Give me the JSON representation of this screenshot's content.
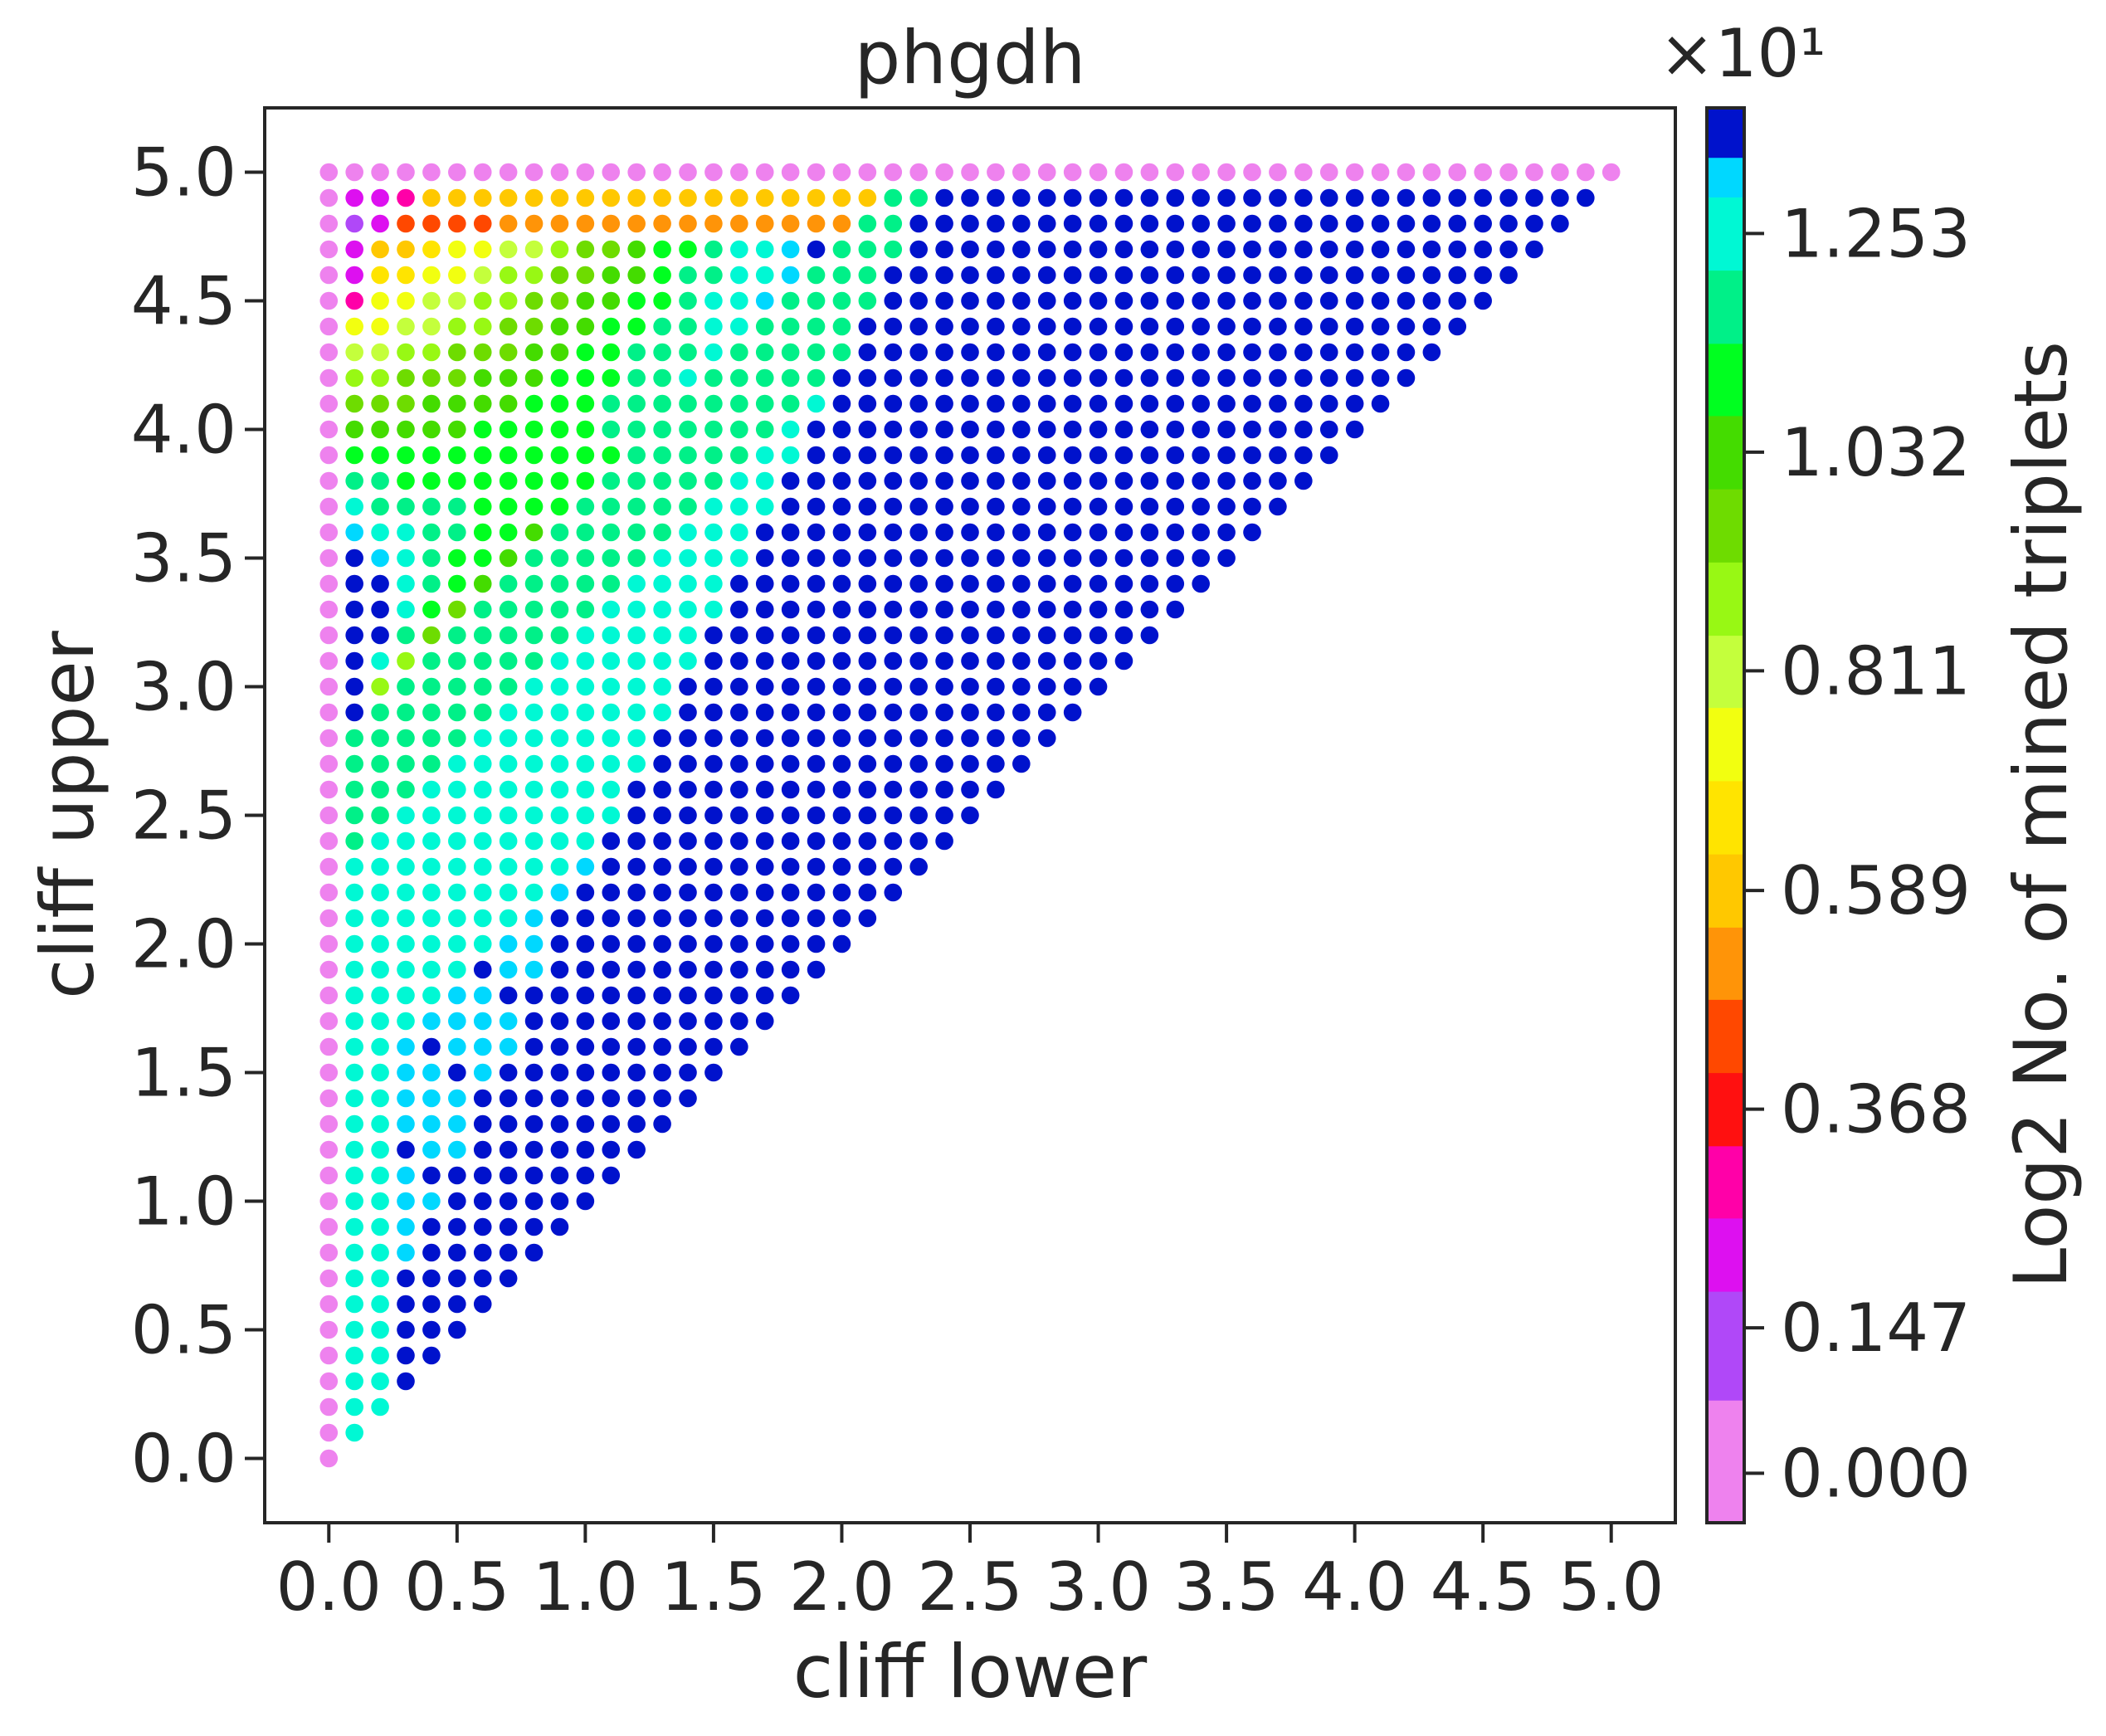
{
  "chart_data": {
    "type": "scatter",
    "title": "phgdh",
    "xlabel": "cliff lower",
    "ylabel": "cliff upper",
    "xlim": [
      -0.25,
      5.25
    ],
    "ylim": [
      -0.25,
      5.25
    ],
    "x_ticks": [
      "0.0",
      "0.5",
      "1.0",
      "1.5",
      "2.0",
      "2.5",
      "3.0",
      "3.5",
      "4.0",
      "4.5",
      "5.0"
    ],
    "y_ticks": [
      "0.0",
      "0.5",
      "1.0",
      "1.5",
      "2.0",
      "2.5",
      "3.0",
      "3.5",
      "4.0",
      "4.5",
      "5.0"
    ],
    "grid_step": 0.1,
    "description_of_points": "One marker for every (cliff lower, cliff upper) pair with 0 <= lower <= upper <= 5 in steps of 0.1; marker color encodes the colorbar value, estimated from the color of each marker.",
    "colorbar": {
      "label": "Log2 No. of mined triplets",
      "offset_text": "×10¹",
      "tick_labels": [
        "0.000",
        "0.147",
        "0.368",
        "0.589",
        "0.811",
        "1.032",
        "1.253"
      ],
      "tick_values": [
        0.0,
        0.147,
        0.368,
        0.589,
        0.811,
        1.032,
        1.253
      ],
      "range": [
        -0.05,
        1.38
      ],
      "levels": [
        {
          "min": -0.05,
          "max": 0.074,
          "color": "#ee82ee"
        },
        {
          "min": 0.074,
          "max": 0.184,
          "color": "#b048f8"
        },
        {
          "min": 0.184,
          "max": 0.258,
          "color": "#dd10f0"
        },
        {
          "min": 0.258,
          "max": 0.331,
          "color": "#ff00a8"
        },
        {
          "min": 0.331,
          "max": 0.405,
          "color": "#ff1010"
        },
        {
          "min": 0.405,
          "max": 0.479,
          "color": "#ff4800"
        },
        {
          "min": 0.479,
          "max": 0.552,
          "color": "#ff9408"
        },
        {
          "min": 0.552,
          "max": 0.626,
          "color": "#ffc800"
        },
        {
          "min": 0.626,
          "max": 0.7,
          "color": "#ffe400"
        },
        {
          "min": 0.7,
          "max": 0.774,
          "color": "#f2ff10"
        },
        {
          "min": 0.774,
          "max": 0.847,
          "color": "#c4ff3c"
        },
        {
          "min": 0.847,
          "max": 0.921,
          "color": "#98f814"
        },
        {
          "min": 0.921,
          "max": 0.995,
          "color": "#6edc00"
        },
        {
          "min": 0.995,
          "max": 1.069,
          "color": "#44dc00"
        },
        {
          "min": 1.069,
          "max": 1.142,
          "color": "#00ff20"
        },
        {
          "min": 1.142,
          "max": 1.216,
          "color": "#00f088"
        },
        {
          "min": 1.216,
          "max": 1.29,
          "color": "#00f8d4"
        },
        {
          "min": 1.29,
          "max": 1.33,
          "color": "#00d8ff"
        },
        {
          "min": 1.33,
          "max": 1.38,
          "color": "#0012cc"
        }
      ]
    }
  }
}
